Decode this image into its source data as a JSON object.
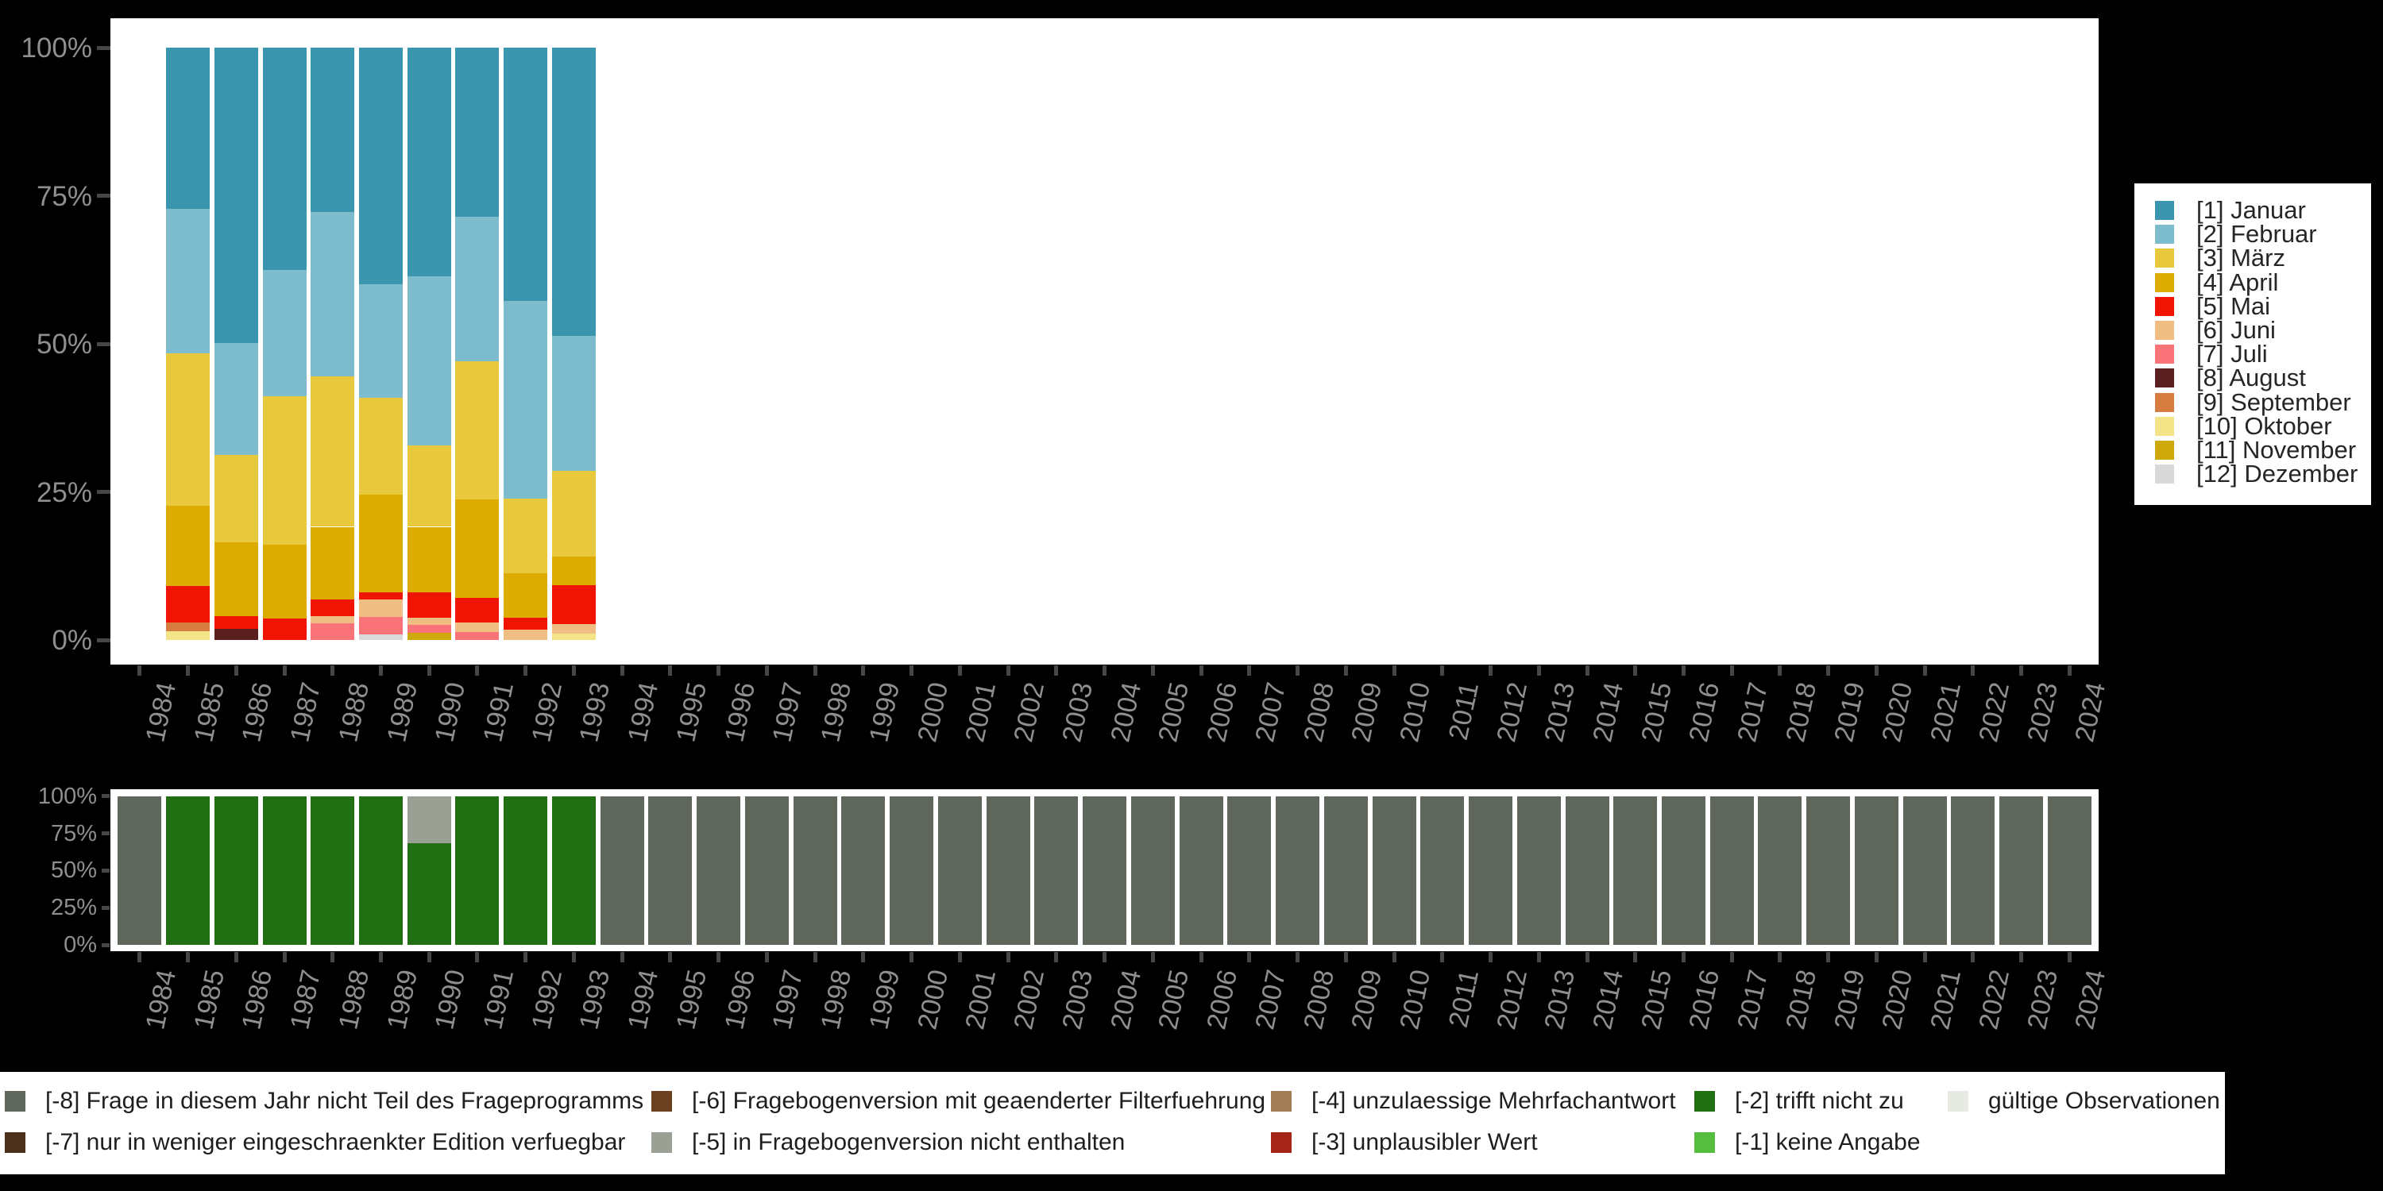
{
  "background": "#000000",
  "axis": {
    "label_color": "#8f8f8f",
    "tick_color": "#474747",
    "y_ticks": [
      "0%",
      "25%",
      "50%",
      "75%",
      "100%"
    ],
    "years": [
      "1984",
      "1985",
      "1986",
      "1987",
      "1988",
      "1989",
      "1990",
      "1991",
      "1992",
      "1993",
      "1994",
      "1995",
      "1996",
      "1997",
      "1998",
      "1999",
      "2000",
      "2001",
      "2002",
      "2003",
      "2004",
      "2005",
      "2006",
      "2007",
      "2008",
      "2009",
      "2010",
      "2011",
      "2012",
      "2013",
      "2014",
      "2015",
      "2016",
      "2017",
      "2018",
      "2019",
      "2020",
      "2021",
      "2022",
      "2023",
      "2024"
    ]
  },
  "months": [
    {
      "code": "1",
      "label": "[1] Januar",
      "color": "#3A96AF"
    },
    {
      "code": "2",
      "label": "[2] Februar",
      "color": "#7DBCCD"
    },
    {
      "code": "3",
      "label": "[3] März",
      "color": "#E8C83C"
    },
    {
      "code": "4",
      "label": "[4] April",
      "color": "#DCAC00"
    },
    {
      "code": "5",
      "label": "[5] Mai",
      "color": "#F01405"
    },
    {
      "code": "6",
      "label": "[6] Juni",
      "color": "#F0BE82"
    },
    {
      "code": "7",
      "label": "[7] Juli",
      "color": "#FA7378"
    },
    {
      "code": "8",
      "label": "[8] August",
      "color": "#5A1F1F"
    },
    {
      "code": "9",
      "label": "[9] September",
      "color": "#D77D41"
    },
    {
      "code": "10",
      "label": "[10] Oktober",
      "color": "#F2E487"
    },
    {
      "code": "11",
      "label": "[11] November",
      "color": "#CDA90B"
    },
    {
      "code": "12",
      "label": "[12] Dezember",
      "color": "#D9D9D9"
    }
  ],
  "codes": {
    "-8": {
      "label": "[-8] Frage in diesem Jahr nicht Teil des Frageprogramms",
      "color": "#5F665C"
    },
    "-7": {
      "label": "[-7] nur in weniger eingeschraenkter Edition verfuegbar",
      "color": "#4D301B"
    },
    "-6": {
      "label": "[-6] Fragebogenversion mit geaenderter Filterfuehrung",
      "color": "#6B4020"
    },
    "-5": {
      "label": "[-5] in Fragebogenversion nicht enthalten",
      "color": "#9BA094"
    },
    "-4": {
      "label": "[-4] unzulaessige Mehrfachantwort",
      "color": "#A07D54"
    },
    "-3": {
      "label": "[-3] unplausibler Wert",
      "color": "#A52519"
    },
    "-2": {
      "label": "[-2] trifft nicht zu",
      "color": "#226E12"
    },
    "-1": {
      "label": "[-1] keine Angabe",
      "color": "#56BE3E"
    },
    "valid": {
      "label": "gültige Observationen",
      "color": "#E6EAE3"
    }
  },
  "bottom_legend_columns": [
    {
      "items": [
        {
          "code": "-8"
        },
        {
          "code": "-7"
        }
      ]
    },
    {
      "items": [
        {
          "code": "-6"
        },
        {
          "code": "-5"
        }
      ]
    },
    {
      "items": [
        {
          "code": "-4"
        },
        {
          "code": "-3"
        }
      ]
    },
    {
      "items": [
        {
          "code": "-2"
        },
        {
          "code": "-1"
        }
      ]
    },
    {
      "items": [
        {
          "code": "valid"
        }
      ]
    }
  ],
  "chart_data": [
    {
      "type": "bar",
      "stacked": true,
      "title": "",
      "xlabel": "",
      "ylabel": "",
      "ylim": [
        0,
        100
      ],
      "grid": false,
      "legend_position": "right",
      "x": [
        "1984",
        "1985",
        "1986",
        "1987",
        "1988",
        "1989",
        "1990",
        "1991",
        "1992",
        "1993",
        "1994",
        "1995",
        "1996",
        "1997",
        "1998",
        "1999",
        "2000",
        "2001",
        "2002",
        "2003",
        "2004",
        "2005",
        "2006",
        "2007",
        "2008",
        "2009",
        "2010",
        "2011",
        "2012",
        "2013",
        "2014",
        "2015",
        "2016",
        "2017",
        "2018",
        "2019",
        "2020",
        "2021",
        "2022",
        "2023",
        "2024"
      ],
      "y_tick_labels": [
        "0%",
        "25%",
        "50%",
        "75%",
        "100%"
      ],
      "series_note": "values are percent per year, listed bottom-to-top; months keyed by code",
      "bars": {
        "1985": [
          [
            "10",
            1.5
          ],
          [
            "9",
            1.4
          ],
          [
            "5",
            6.2
          ],
          [
            "4",
            13.5
          ],
          [
            "3",
            25.8
          ],
          [
            "2",
            24.4
          ],
          [
            "1",
            27.2
          ]
        ],
        "1986": [
          [
            "8",
            1.9
          ],
          [
            "5",
            2.1
          ],
          [
            "4",
            12.5
          ],
          [
            "3",
            14.7
          ],
          [
            "2",
            19.0
          ],
          [
            "1",
            49.8
          ]
        ],
        "1987": [
          [
            "5",
            3.6
          ],
          [
            "4",
            12.5
          ],
          [
            "3",
            25.1
          ],
          [
            "2",
            21.2
          ],
          [
            "1",
            37.6
          ]
        ],
        "1988": [
          [
            "7",
            2.8
          ],
          [
            "6",
            1.2
          ],
          [
            "5",
            2.8
          ],
          [
            "4",
            12.3
          ],
          [
            "3",
            25.4
          ],
          [
            "2",
            27.7
          ],
          [
            "1",
            27.8
          ]
        ],
        "1989": [
          [
            "12",
            1.0
          ],
          [
            "7",
            2.9
          ],
          [
            "6",
            2.9
          ],
          [
            "5",
            1.3
          ],
          [
            "4",
            16.4
          ],
          [
            "3",
            16.4
          ],
          [
            "2",
            19.2
          ],
          [
            "1",
            39.9
          ]
        ],
        "1990": [
          [
            "11",
            1.2
          ],
          [
            "7",
            1.3
          ],
          [
            "6",
            1.3
          ],
          [
            "5",
            4.2
          ],
          [
            "4",
            11.1
          ],
          [
            "3",
            13.7
          ],
          [
            "2",
            28.6
          ],
          [
            "1",
            38.6
          ]
        ],
        "1991": [
          [
            "7",
            1.3
          ],
          [
            "6",
            1.6
          ],
          [
            "5",
            4.2
          ],
          [
            "4",
            16.6
          ],
          [
            "3",
            23.3
          ],
          [
            "2",
            24.4
          ],
          [
            "1",
            28.6
          ]
        ],
        "1992": [
          [
            "6",
            1.7
          ],
          [
            "5",
            2.0
          ],
          [
            "4",
            7.5
          ],
          [
            "3",
            12.7
          ],
          [
            "2",
            33.3
          ],
          [
            "1",
            42.8
          ]
        ],
        "1993": [
          [
            "10",
            1.1
          ],
          [
            "6",
            1.6
          ],
          [
            "5",
            6.5
          ],
          [
            "4",
            4.9
          ],
          [
            "3",
            14.5
          ],
          [
            "2",
            22.7
          ],
          [
            "1",
            48.7
          ]
        ]
      }
    },
    {
      "type": "bar",
      "stacked": true,
      "title": "",
      "xlabel": "",
      "ylabel": "",
      "ylim": [
        0,
        100
      ],
      "grid": false,
      "x": [
        "1984",
        "1985",
        "1986",
        "1987",
        "1988",
        "1989",
        "1990",
        "1991",
        "1992",
        "1993",
        "1994",
        "1995",
        "1996",
        "1997",
        "1998",
        "1999",
        "2000",
        "2001",
        "2002",
        "2003",
        "2004",
        "2005",
        "2006",
        "2007",
        "2008",
        "2009",
        "2010",
        "2011",
        "2012",
        "2013",
        "2014",
        "2015",
        "2016",
        "2017",
        "2018",
        "2019",
        "2020",
        "2021",
        "2022",
        "2023",
        "2024"
      ],
      "y_tick_labels": [
        "0%",
        "25%",
        "50%",
        "75%",
        "100%"
      ],
      "series_note": "availability of observations per year, percent, bottom-to-top; keys are missing-value codes",
      "bars": {
        "1984": [
          [
            "-8",
            100
          ]
        ],
        "1985": [
          [
            "-2",
            100
          ]
        ],
        "1986": [
          [
            "-2",
            100
          ]
        ],
        "1987": [
          [
            "-2",
            100
          ]
        ],
        "1988": [
          [
            "-2",
            100
          ]
        ],
        "1989": [
          [
            "-2",
            100
          ]
        ],
        "1990": [
          [
            "-2",
            68.5
          ],
          [
            "-5",
            31.5
          ]
        ],
        "1991": [
          [
            "-2",
            100
          ]
        ],
        "1992": [
          [
            "-2",
            100
          ]
        ],
        "1993": [
          [
            "-2",
            100
          ]
        ],
        "1994": [
          [
            "-8",
            100
          ]
        ],
        "1995": [
          [
            "-8",
            100
          ]
        ],
        "1996": [
          [
            "-8",
            100
          ]
        ],
        "1997": [
          [
            "-8",
            100
          ]
        ],
        "1998": [
          [
            "-8",
            100
          ]
        ],
        "1999": [
          [
            "-8",
            100
          ]
        ],
        "2000": [
          [
            "-8",
            100
          ]
        ],
        "2001": [
          [
            "-8",
            100
          ]
        ],
        "2002": [
          [
            "-8",
            100
          ]
        ],
        "2003": [
          [
            "-8",
            100
          ]
        ],
        "2004": [
          [
            "-8",
            100
          ]
        ],
        "2005": [
          [
            "-8",
            100
          ]
        ],
        "2006": [
          [
            "-8",
            100
          ]
        ],
        "2007": [
          [
            "-8",
            100
          ]
        ],
        "2008": [
          [
            "-8",
            100
          ]
        ],
        "2009": [
          [
            "-8",
            100
          ]
        ],
        "2010": [
          [
            "-8",
            100
          ]
        ],
        "2011": [
          [
            "-8",
            100
          ]
        ],
        "2012": [
          [
            "-8",
            100
          ]
        ],
        "2013": [
          [
            "-8",
            100
          ]
        ],
        "2014": [
          [
            "-8",
            100
          ]
        ],
        "2015": [
          [
            "-8",
            100
          ]
        ],
        "2016": [
          [
            "-8",
            100
          ]
        ],
        "2017": [
          [
            "-8",
            100
          ]
        ],
        "2018": [
          [
            "-8",
            100
          ]
        ],
        "2019": [
          [
            "-8",
            100
          ]
        ],
        "2020": [
          [
            "-8",
            100
          ]
        ],
        "2021": [
          [
            "-8",
            100
          ]
        ],
        "2022": [
          [
            "-8",
            100
          ]
        ],
        "2023": [
          [
            "-8",
            100
          ]
        ],
        "2024": [
          [
            "-8",
            100
          ]
        ]
      }
    }
  ]
}
